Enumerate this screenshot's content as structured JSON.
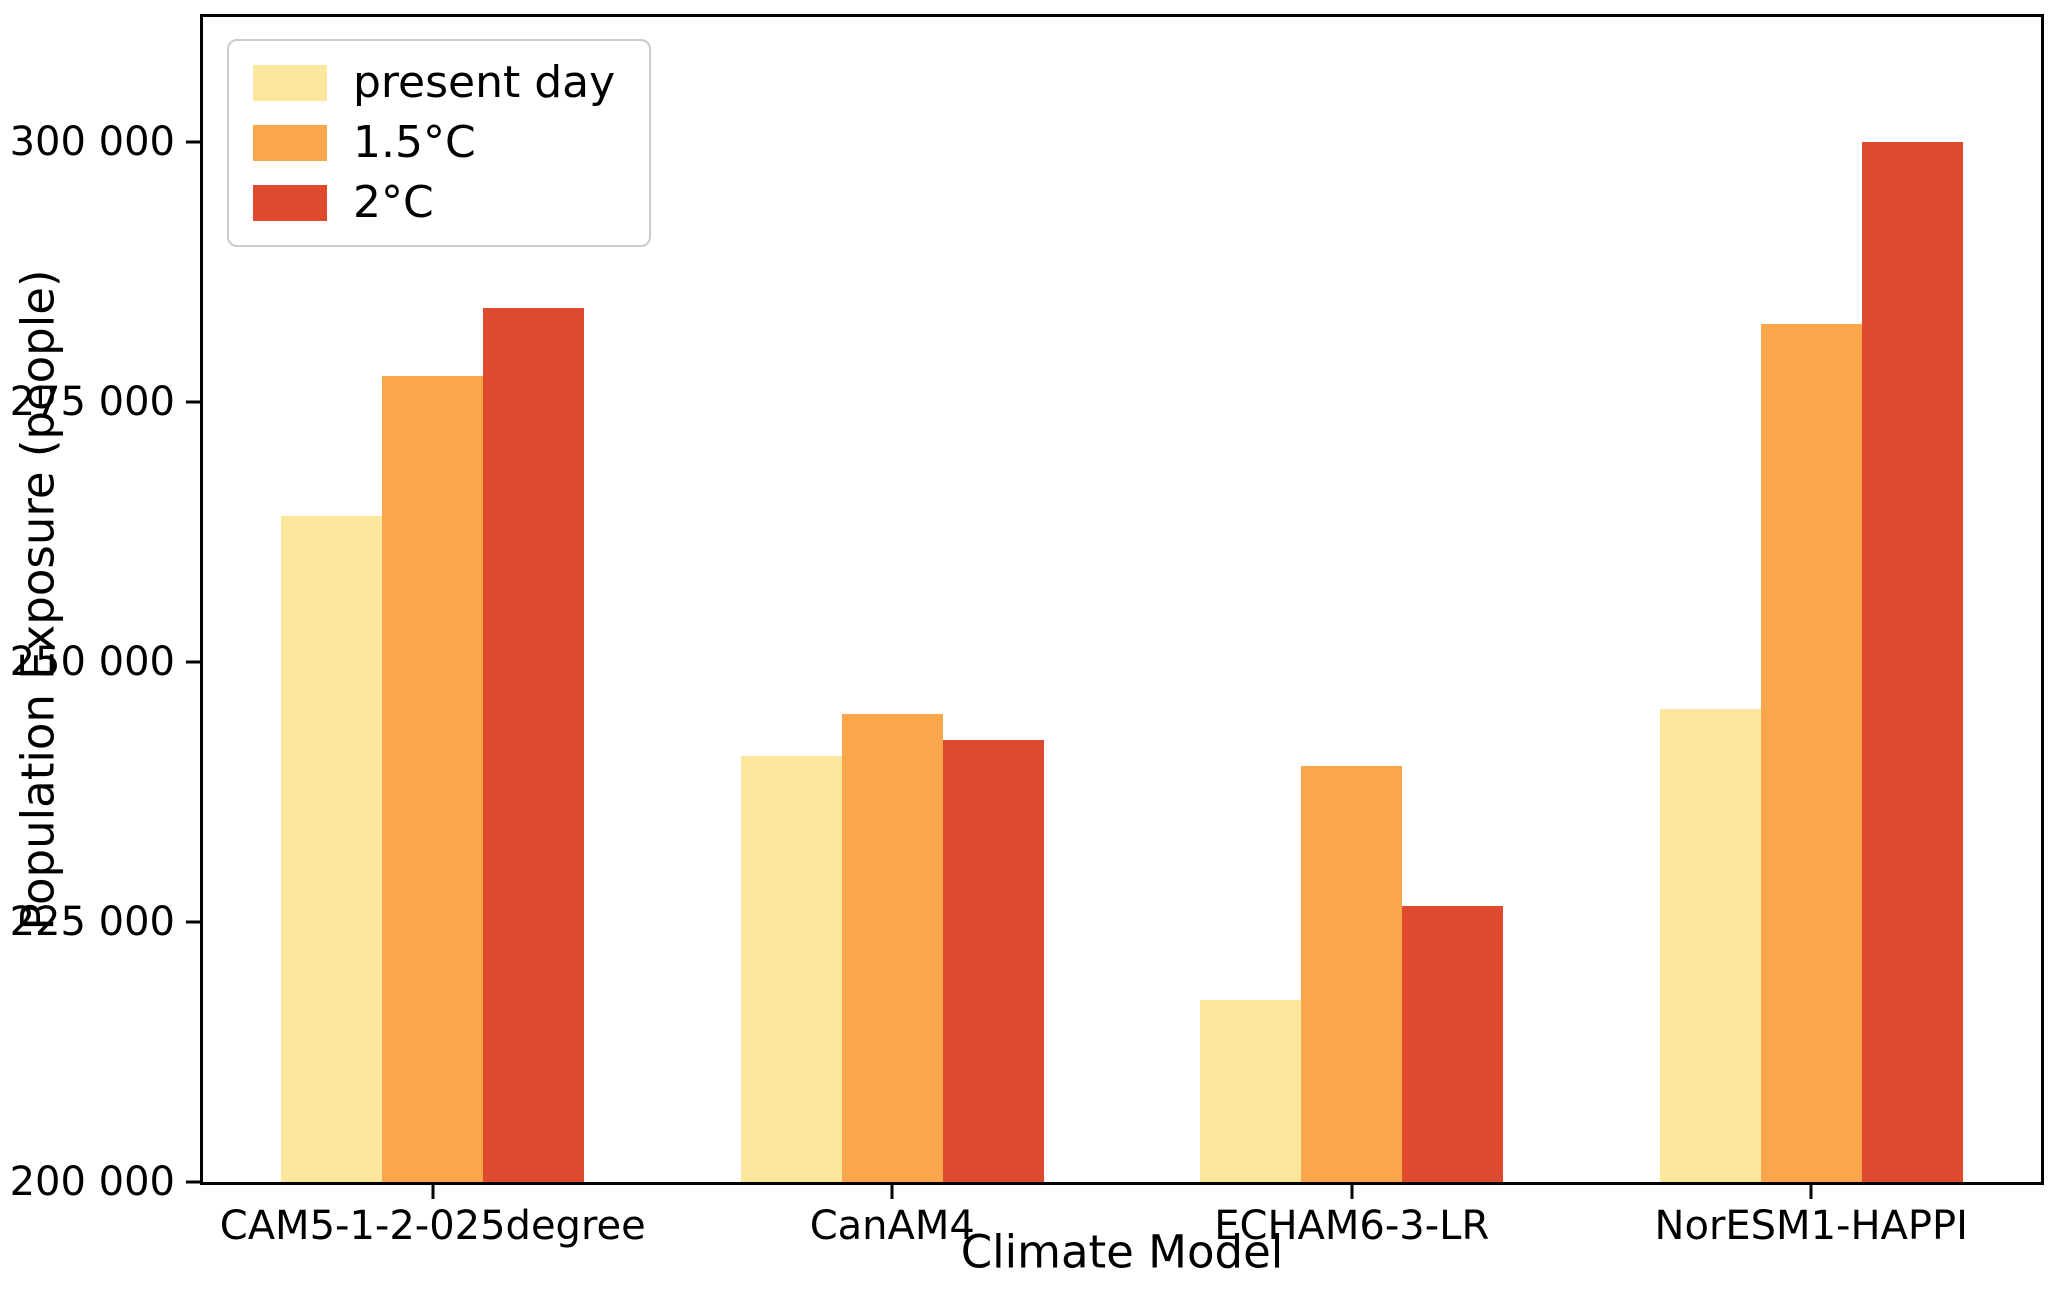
{
  "chart_data": {
    "type": "bar",
    "categories": [
      "CAM5-1-2-025degree",
      "CanAM4",
      "ECHAM6-3-LR",
      "NorESM1-HAPPI"
    ],
    "series": [
      {
        "name": "present day",
        "color": "#FCE79C",
        "values": [
          264000,
          241000,
          217500,
          245500
        ]
      },
      {
        "name": "1.5°C",
        "color": "#FAA74B",
        "values": [
          277500,
          245000,
          240000,
          282500
        ]
      },
      {
        "name": "2°C",
        "color": "#DF4A2F",
        "values": [
          284000,
          242500,
          226500,
          300000
        ]
      }
    ],
    "xlabel": "Climate Model",
    "ylabel": "Population Exposure (people)",
    "ylim": [
      200000,
      312000
    ],
    "yticks": [
      200000,
      225000,
      250000,
      275000,
      300000
    ],
    "ytick_labels": [
      "200 000",
      "225 000",
      "250 000",
      "275 000",
      "300 000"
    ],
    "legend_position": "upper left",
    "grid": false
  }
}
